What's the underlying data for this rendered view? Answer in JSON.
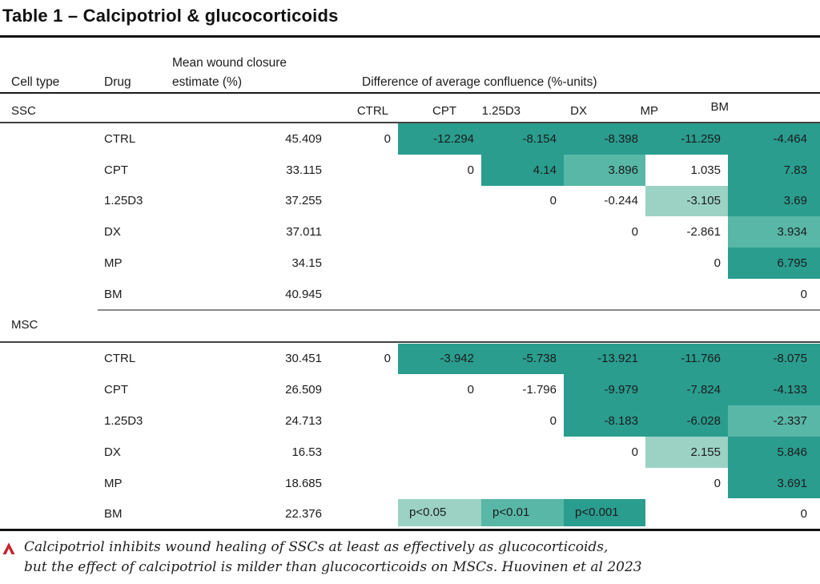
{
  "title": "Table 1 – Calcipotriol & glucocorticoids",
  "header": {
    "cell_type": "Cell type",
    "drug": "Drug",
    "estimate_line1": "Mean wound closure",
    "estimate_line2": "estimate (%)",
    "diff": "Difference of average confluence (%-units)"
  },
  "diff_columns": [
    "CTRL",
    "CPT",
    "1.25D3",
    "DX",
    "MP",
    "BM"
  ],
  "colors": {
    "sig_light": "#9bd2c4",
    "sig_med": "#58b7a7",
    "sig_dark": "#2a9d8f",
    "accent_red": "#c5242e"
  },
  "legend": [
    {
      "label": "p<0.05",
      "level": "light"
    },
    {
      "label": "p<0.01",
      "level": "med"
    },
    {
      "label": "p<0.001",
      "level": "dark"
    }
  ],
  "sections": [
    {
      "cell_type": "SSC",
      "rows": [
        {
          "drug": "CTRL",
          "estimate": "45.409",
          "diffs": [
            {
              "v": "0"
            },
            {
              "v": "-12.294",
              "s": "dark"
            },
            {
              "v": "-8.154",
              "s": "dark"
            },
            {
              "v": "-8.398",
              "s": "dark"
            },
            {
              "v": "-11.259",
              "s": "dark"
            },
            {
              "v": "-4.464",
              "s": "dark"
            }
          ]
        },
        {
          "drug": "CPT",
          "estimate": "33.115",
          "diffs": [
            null,
            {
              "v": "0"
            },
            {
              "v": "4.14",
              "s": "dark"
            },
            {
              "v": "3.896",
              "s": "med"
            },
            {
              "v": "1.035"
            },
            {
              "v": "7.83",
              "s": "dark"
            }
          ]
        },
        {
          "drug": "1.25D3",
          "estimate": "37.255",
          "diffs": [
            null,
            null,
            {
              "v": "0"
            },
            {
              "v": "-0.244"
            },
            {
              "v": "-3.105",
              "s": "light"
            },
            {
              "v": "3.69",
              "s": "dark"
            }
          ]
        },
        {
          "drug": "DX",
          "estimate": "37.011",
          "diffs": [
            null,
            null,
            null,
            {
              "v": "0"
            },
            {
              "v": "-2.861"
            },
            {
              "v": "3.934",
              "s": "med"
            }
          ]
        },
        {
          "drug": "MP",
          "estimate": "34.15",
          "diffs": [
            null,
            null,
            null,
            null,
            {
              "v": "0"
            },
            {
              "v": "6.795",
              "s": "dark"
            }
          ]
        },
        {
          "drug": "BM",
          "estimate": "40.945",
          "diffs": [
            null,
            null,
            null,
            null,
            null,
            {
              "v": "0"
            }
          ]
        }
      ]
    },
    {
      "cell_type": "MSC",
      "rows": [
        {
          "drug": "CTRL",
          "estimate": "30.451",
          "diffs": [
            {
              "v": "0"
            },
            {
              "v": "-3.942",
              "s": "dark"
            },
            {
              "v": "-5.738",
              "s": "dark"
            },
            {
              "v": "-13.921",
              "s": "dark"
            },
            {
              "v": "-11.766",
              "s": "dark"
            },
            {
              "v": "-8.075",
              "s": "dark"
            }
          ]
        },
        {
          "drug": "CPT",
          "estimate": "26.509",
          "diffs": [
            null,
            {
              "v": "0"
            },
            {
              "v": "-1.796"
            },
            {
              "v": "-9.979",
              "s": "dark"
            },
            {
              "v": "-7.824",
              "s": "dark"
            },
            {
              "v": "-4.133",
              "s": "dark"
            }
          ]
        },
        {
          "drug": "1.25D3",
          "estimate": "24.713",
          "diffs": [
            null,
            null,
            {
              "v": "0"
            },
            {
              "v": "-8.183",
              "s": "dark"
            },
            {
              "v": "-6.028",
              "s": "dark"
            },
            {
              "v": "-2.337",
              "s": "med"
            }
          ]
        },
        {
          "drug": "DX",
          "estimate": "16.53",
          "diffs": [
            null,
            null,
            null,
            {
              "v": "0"
            },
            {
              "v": "2.155",
              "s": "light"
            },
            {
              "v": "5.846",
              "s": "dark"
            }
          ]
        },
        {
          "drug": "MP",
          "estimate": "18.685",
          "diffs": [
            null,
            null,
            null,
            null,
            {
              "v": "0"
            },
            {
              "v": "3.691",
              "s": "dark"
            }
          ]
        },
        {
          "drug": "BM",
          "estimate": "22.376",
          "diffs": [
            null,
            {
              "legend": 0
            },
            {
              "legend": 1
            },
            {
              "legend": 2
            },
            null,
            {
              "v": "0"
            }
          ]
        }
      ]
    }
  ],
  "caption": {
    "marker": "red-up-caret",
    "line1": "Calcipotriol inhibits wound healing of SSCs at least as effectively as glucocorticoids,",
    "line2": "but the effect of calcipotriol is milder than glucocorticoids on MSCs. Huovinen et al 2023"
  }
}
